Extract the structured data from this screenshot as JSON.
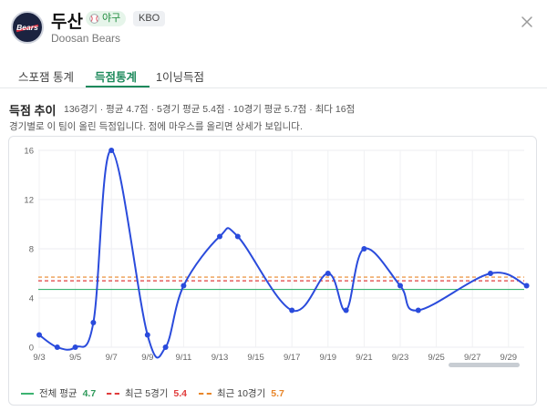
{
  "header": {
    "team_name": "두산",
    "sport_badge": "야구",
    "league_badge": "KBO",
    "team_name_en": "Doosan Bears",
    "logo_text": "Bears"
  },
  "tabs": [
    {
      "label": "스포잼 통계",
      "active": false
    },
    {
      "label": "득점통계",
      "active": true
    },
    {
      "label": "1이닝득점",
      "active": false
    }
  ],
  "section": {
    "title": "득점 추이",
    "stats": "136경기 · 평균 4.7점 · 5경기 평균 5.4점 · 10경기 평균 5.7점 · 최다 16점",
    "description": "경기별로 이 팀이 올린 득점입니다. 점에 마우스를 올리면 상세가 보입니다."
  },
  "legend": [
    {
      "label": "전체 평균",
      "value": "4.7",
      "color": "#3cb371",
      "style": "solid"
    },
    {
      "label": "최근 5경기",
      "value": "5.4",
      "color": "#e03c3c",
      "style": "dashed"
    },
    {
      "label": "최근 10경기",
      "value": "5.7",
      "color": "#e8862a",
      "style": "dashed"
    }
  ],
  "colors": {
    "accent": "#1e8a5c",
    "series": "#2a4bdc",
    "avg_all": "#3cb371",
    "avg_5": "#e03c3c",
    "avg_10": "#e8862a"
  },
  "scroll_position": 1.0,
  "chart_data": {
    "type": "line",
    "series": [
      {
        "x": [
          "9/3",
          "9/4",
          "9/5",
          "9/6",
          "9/7",
          "9/8",
          "9/9",
          "9/10",
          "9/11",
          "9/12",
          "9/13",
          "9/14",
          "9/15",
          "9/16",
          "9/17",
          "9/18",
          "9/19",
          "9/20",
          "9/21",
          "9/22",
          "9/23",
          "9/24",
          "9/25",
          "9/26",
          "9/27",
          "9/28",
          "9/29",
          "9/30"
        ],
        "values": [
          1,
          0,
          0,
          2,
          16,
          null,
          1,
          0,
          5,
          null,
          9,
          9,
          null,
          null,
          3,
          null,
          6,
          3,
          8,
          null,
          5,
          3,
          null,
          null,
          null,
          6,
          null,
          5
        ]
      }
    ],
    "x_tick_labels": [
      "9/3",
      "9/5",
      "9/7",
      "9/9",
      "9/11",
      "9/13",
      "9/15",
      "9/17",
      "9/19",
      "9/21",
      "9/23",
      "9/25",
      "9/27",
      "9/29"
    ],
    "ylim": [
      0,
      16
    ],
    "y_ticks": [
      0,
      4,
      8,
      12,
      16
    ],
    "reference_lines": [
      {
        "name": "전체 평균",
        "value": 4.7
      },
      {
        "name": "최근 5경기",
        "value": 5.4
      },
      {
        "name": "최근 10경기",
        "value": 5.7
      }
    ],
    "grid": true
  }
}
